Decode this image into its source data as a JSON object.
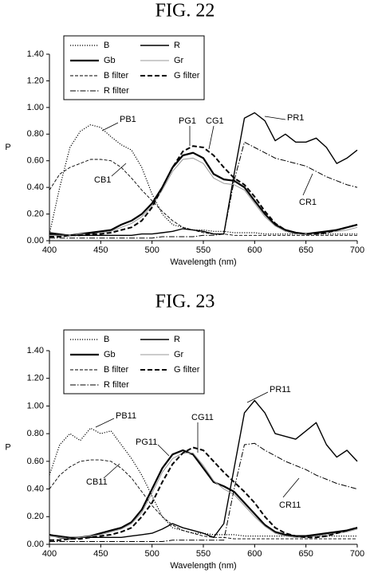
{
  "chart_data": [
    {
      "type": "line",
      "title": "FIG. 22",
      "xlabel": "Wavelength (nm)",
      "ylabel": "P",
      "grid": false,
      "xlim": [
        400,
        700
      ],
      "xticks": [
        400,
        450,
        500,
        550,
        600,
        650,
        700
      ],
      "ylim": [
        0,
        1.4
      ],
      "yticks": [
        {
          "value": 0,
          "label": "0.00"
        },
        {
          "value": 0.2,
          "label": "0.20"
        },
        {
          "value": 0.4,
          "label": "0.40"
        },
        {
          "value": 0.6,
          "label": "0.60"
        },
        {
          "value": 0.8,
          "label": "0.80"
        },
        {
          "value": 1.0,
          "label": "1.00"
        },
        {
          "value": 1.2,
          "label": "1.20"
        },
        {
          "value": 1.4,
          "label": "1.40"
        }
      ],
      "x": [
        400,
        410,
        420,
        430,
        440,
        450,
        460,
        470,
        480,
        490,
        500,
        510,
        520,
        530,
        540,
        550,
        560,
        570,
        580,
        590,
        600,
        610,
        620,
        630,
        640,
        650,
        660,
        670,
        680,
        690,
        700
      ],
      "series": [
        {
          "name": "B",
          "style": "dotted",
          "color": "#000000",
          "values": [
            0.05,
            0.4,
            0.7,
            0.82,
            0.87,
            0.85,
            0.78,
            0.72,
            0.68,
            0.55,
            0.35,
            0.2,
            0.12,
            0.1,
            0.08,
            0.08,
            0.07,
            0.07,
            0.06,
            0.06,
            0.06,
            0.05,
            0.05,
            0.05,
            0.05,
            0.05,
            0.05,
            0.05,
            0.05,
            0.05,
            0.05
          ]
        },
        {
          "name": "R",
          "style": "solid",
          "color": "#000000",
          "values": [
            0.06,
            0.05,
            0.04,
            0.04,
            0.04,
            0.04,
            0.04,
            0.04,
            0.04,
            0.05,
            0.05,
            0.06,
            0.07,
            0.09,
            0.08,
            0.07,
            0.05,
            0.05,
            0.5,
            0.92,
            0.96,
            0.9,
            0.75,
            0.8,
            0.74,
            0.74,
            0.77,
            0.7,
            0.58,
            0.62,
            0.68
          ]
        },
        {
          "name": "Gb",
          "style": "thick",
          "color": "#000000",
          "values": [
            0.05,
            0.04,
            0.04,
            0.05,
            0.06,
            0.07,
            0.08,
            0.12,
            0.15,
            0.2,
            0.28,
            0.4,
            0.55,
            0.64,
            0.66,
            0.62,
            0.5,
            0.46,
            0.45,
            0.4,
            0.3,
            0.2,
            0.12,
            0.08,
            0.06,
            0.05,
            0.06,
            0.07,
            0.08,
            0.1,
            0.12
          ]
        },
        {
          "name": "Gr",
          "style": "thin",
          "color": "#999999",
          "values": [
            0.04,
            0.04,
            0.04,
            0.05,
            0.05,
            0.06,
            0.07,
            0.1,
            0.13,
            0.18,
            0.26,
            0.38,
            0.52,
            0.61,
            0.62,
            0.58,
            0.47,
            0.43,
            0.42,
            0.38,
            0.28,
            0.18,
            0.11,
            0.07,
            0.05,
            0.05,
            0.05,
            0.06,
            0.07,
            0.08,
            0.1
          ]
        },
        {
          "name": "B filter",
          "style": "thin-dashed",
          "color": "#000000",
          "values": [
            0.38,
            0.5,
            0.55,
            0.58,
            0.61,
            0.61,
            0.6,
            0.55,
            0.47,
            0.38,
            0.3,
            0.22,
            0.15,
            0.1,
            0.08,
            0.06,
            0.05,
            0.05,
            0.04,
            0.04,
            0.04,
            0.04,
            0.04,
            0.04,
            0.04,
            0.04,
            0.04,
            0.04,
            0.04,
            0.04,
            0.04
          ]
        },
        {
          "name": "G filter",
          "style": "thick-dashed",
          "color": "#000000",
          "values": [
            0.03,
            0.03,
            0.04,
            0.04,
            0.05,
            0.05,
            0.06,
            0.08,
            0.1,
            0.15,
            0.25,
            0.4,
            0.55,
            0.67,
            0.71,
            0.7,
            0.64,
            0.55,
            0.47,
            0.42,
            0.33,
            0.22,
            0.13,
            0.08,
            0.06,
            0.05,
            0.05,
            0.06,
            0.08,
            0.1,
            0.12
          ]
        },
        {
          "name": "R filter",
          "style": "dash-dot",
          "color": "#000000",
          "values": [
            0.02,
            0.02,
            0.02,
            0.02,
            0.02,
            0.02,
            0.02,
            0.02,
            0.02,
            0.02,
            0.02,
            0.03,
            0.03,
            0.03,
            0.03,
            0.04,
            0.04,
            0.05,
            0.45,
            0.74,
            0.7,
            0.66,
            0.62,
            0.6,
            0.58,
            0.56,
            0.52,
            0.48,
            0.45,
            0.42,
            0.4
          ]
        }
      ],
      "annotations": [
        "PB1",
        "CB1",
        "PG1",
        "CG1",
        "PR1",
        "CR1"
      ]
    },
    {
      "type": "line",
      "title": "FIG. 23",
      "xlabel": "Wavelength (nm)",
      "ylabel": "P",
      "grid": false,
      "xlim": [
        400,
        700
      ],
      "xticks": [
        400,
        450,
        500,
        550,
        600,
        650,
        700
      ],
      "ylim": [
        0,
        1.4
      ],
      "yticks": [
        {
          "value": 0,
          "label": "0.00"
        },
        {
          "value": 0.2,
          "label": "0.20"
        },
        {
          "value": 0.4,
          "label": "0.40"
        },
        {
          "value": 0.6,
          "label": "0.60"
        },
        {
          "value": 0.8,
          "label": "0.80"
        },
        {
          "value": 1.0,
          "label": "1.00"
        },
        {
          "value": 1.2,
          "label": "1.20"
        },
        {
          "value": 1.4,
          "label": "1.40"
        }
      ],
      "x": [
        400,
        410,
        420,
        430,
        440,
        450,
        460,
        470,
        480,
        490,
        500,
        510,
        520,
        530,
        540,
        550,
        560,
        570,
        580,
        590,
        600,
        610,
        620,
        630,
        640,
        650,
        660,
        670,
        680,
        690,
        700
      ],
      "series": [
        {
          "name": "B",
          "style": "dotted",
          "color": "#000000",
          "values": [
            0.5,
            0.72,
            0.8,
            0.75,
            0.84,
            0.8,
            0.82,
            0.72,
            0.62,
            0.5,
            0.35,
            0.2,
            0.12,
            0.1,
            0.08,
            0.08,
            0.07,
            0.07,
            0.07,
            0.06,
            0.06,
            0.06,
            0.06,
            0.06,
            0.06,
            0.06,
            0.06,
            0.06,
            0.06,
            0.06,
            0.06
          ]
        },
        {
          "name": "R",
          "style": "solid",
          "color": "#000000",
          "values": [
            0.07,
            0.06,
            0.05,
            0.05,
            0.05,
            0.05,
            0.05,
            0.05,
            0.06,
            0.07,
            0.08,
            0.11,
            0.15,
            0.12,
            0.1,
            0.08,
            0.05,
            0.15,
            0.55,
            0.95,
            1.04,
            0.95,
            0.8,
            0.78,
            0.76,
            0.82,
            0.88,
            0.72,
            0.63,
            0.68,
            0.6
          ]
        },
        {
          "name": "Gb",
          "style": "thick",
          "color": "#000000",
          "values": [
            0.07,
            0.05,
            0.04,
            0.05,
            0.06,
            0.08,
            0.1,
            0.12,
            0.16,
            0.25,
            0.4,
            0.55,
            0.65,
            0.68,
            0.65,
            0.55,
            0.45,
            0.42,
            0.38,
            0.3,
            0.22,
            0.14,
            0.09,
            0.07,
            0.06,
            0.06,
            0.07,
            0.08,
            0.09,
            0.1,
            0.12
          ]
        },
        {
          "name": "Gr",
          "style": "thin",
          "color": "#999999",
          "values": [
            0.06,
            0.05,
            0.04,
            0.05,
            0.06,
            0.07,
            0.09,
            0.11,
            0.15,
            0.23,
            0.37,
            0.52,
            0.62,
            0.66,
            0.66,
            0.57,
            0.46,
            0.4,
            0.36,
            0.28,
            0.2,
            0.13,
            0.08,
            0.06,
            0.05,
            0.05,
            0.06,
            0.07,
            0.08,
            0.09,
            0.11
          ]
        },
        {
          "name": "B filter",
          "style": "thin-dashed",
          "color": "#000000",
          "values": [
            0.4,
            0.5,
            0.56,
            0.6,
            0.61,
            0.61,
            0.6,
            0.55,
            0.48,
            0.38,
            0.28,
            0.2,
            0.14,
            0.1,
            0.08,
            0.06,
            0.05,
            0.05,
            0.04,
            0.04,
            0.04,
            0.04,
            0.04,
            0.04,
            0.04,
            0.04,
            0.04,
            0.04,
            0.04,
            0.04,
            0.04
          ]
        },
        {
          "name": "G filter",
          "style": "thick-dashed",
          "color": "#000000",
          "values": [
            0.03,
            0.03,
            0.04,
            0.04,
            0.05,
            0.06,
            0.07,
            0.09,
            0.12,
            0.2,
            0.3,
            0.45,
            0.58,
            0.66,
            0.7,
            0.68,
            0.6,
            0.52,
            0.45,
            0.38,
            0.3,
            0.2,
            0.12,
            0.08,
            0.06,
            0.05,
            0.05,
            0.06,
            0.08,
            0.1,
            0.12
          ]
        },
        {
          "name": "R filter",
          "style": "dash-dot",
          "color": "#000000",
          "values": [
            0.02,
            0.02,
            0.02,
            0.02,
            0.02,
            0.02,
            0.02,
            0.02,
            0.02,
            0.02,
            0.02,
            0.02,
            0.03,
            0.03,
            0.03,
            0.03,
            0.03,
            0.03,
            0.4,
            0.72,
            0.73,
            0.68,
            0.64,
            0.6,
            0.57,
            0.54,
            0.5,
            0.47,
            0.44,
            0.42,
            0.4
          ]
        }
      ],
      "annotations": [
        "PB11",
        "CB11",
        "PG11",
        "CG11",
        "PR11",
        "CR11"
      ]
    }
  ]
}
